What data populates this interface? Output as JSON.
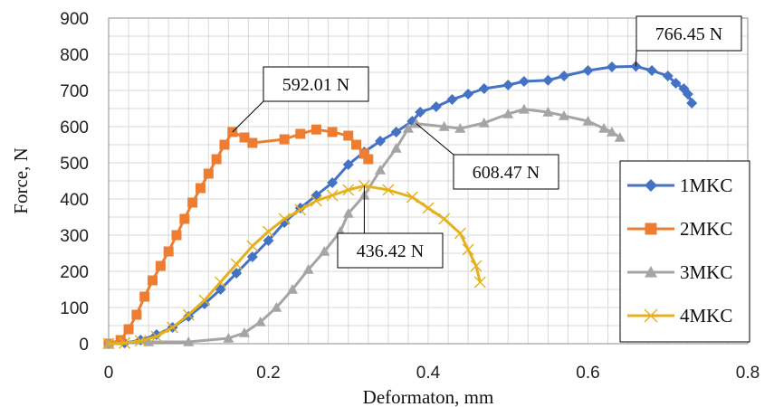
{
  "chart_data": {
    "type": "scatter",
    "xlabel": "Deformaton, mm",
    "ylabel": "Force, N",
    "xlim": [
      0,
      0.8
    ],
    "ylim": [
      0,
      900
    ],
    "xticks": [
      0,
      0.2,
      0.4,
      0.6,
      0.8
    ],
    "xtick_labels": [
      "0",
      "0.2",
      "0.4",
      "0.6",
      "0.8"
    ],
    "yticks": [
      0,
      100,
      200,
      300,
      400,
      500,
      600,
      700,
      800,
      900
    ],
    "ytick_labels": [
      "0",
      "100",
      "200",
      "300",
      "400",
      "500",
      "600",
      "700",
      "800",
      "900"
    ],
    "grid": true,
    "legend_position": "right",
    "series": [
      {
        "name": "1MKC",
        "color": "#4472C4",
        "marker": "diamond",
        "points": [
          [
            0,
            0
          ],
          [
            0.02,
            2
          ],
          [
            0.04,
            10
          ],
          [
            0.06,
            25
          ],
          [
            0.08,
            45
          ],
          [
            0.1,
            75
          ],
          [
            0.12,
            110
          ],
          [
            0.14,
            150
          ],
          [
            0.16,
            195
          ],
          [
            0.18,
            240
          ],
          [
            0.2,
            285
          ],
          [
            0.22,
            335
          ],
          [
            0.24,
            375
          ],
          [
            0.26,
            410
          ],
          [
            0.28,
            445
          ],
          [
            0.3,
            495
          ],
          [
            0.32,
            530
          ],
          [
            0.34,
            560
          ],
          [
            0.36,
            585
          ],
          [
            0.38,
            615
          ],
          [
            0.39,
            640
          ],
          [
            0.41,
            655
          ],
          [
            0.43,
            675
          ],
          [
            0.45,
            690
          ],
          [
            0.47,
            705
          ],
          [
            0.5,
            715
          ],
          [
            0.52,
            725
          ],
          [
            0.55,
            728
          ],
          [
            0.57,
            740
          ],
          [
            0.6,
            755
          ],
          [
            0.63,
            765
          ],
          [
            0.66,
            766.45
          ],
          [
            0.68,
            755
          ],
          [
            0.7,
            740
          ],
          [
            0.71,
            720
          ],
          [
            0.72,
            705
          ],
          [
            0.725,
            690
          ],
          [
            0.73,
            665
          ]
        ]
      },
      {
        "name": "2MKC",
        "color": "#ED7D31",
        "marker": "square",
        "points": [
          [
            0,
            0
          ],
          [
            0.015,
            10
          ],
          [
            0.025,
            40
          ],
          [
            0.035,
            80
          ],
          [
            0.045,
            130
          ],
          [
            0.055,
            175
          ],
          [
            0.065,
            215
          ],
          [
            0.075,
            255
          ],
          [
            0.085,
            300
          ],
          [
            0.095,
            345
          ],
          [
            0.105,
            390
          ],
          [
            0.115,
            430
          ],
          [
            0.125,
            470
          ],
          [
            0.135,
            510
          ],
          [
            0.145,
            550
          ],
          [
            0.155,
            585
          ],
          [
            0.17,
            570
          ],
          [
            0.18,
            555
          ],
          [
            0.22,
            565
          ],
          [
            0.24,
            580
          ],
          [
            0.26,
            592.01
          ],
          [
            0.28,
            585
          ],
          [
            0.3,
            575
          ],
          [
            0.31,
            550
          ],
          [
            0.32,
            525
          ],
          [
            0.325,
            510
          ]
        ]
      },
      {
        "name": "3MKC",
        "color": "#A5A5A5",
        "marker": "triangle",
        "points": [
          [
            0,
            0
          ],
          [
            0.05,
            5
          ],
          [
            0.1,
            5
          ],
          [
            0.15,
            15
          ],
          [
            0.17,
            30
          ],
          [
            0.19,
            60
          ],
          [
            0.21,
            100
          ],
          [
            0.23,
            150
          ],
          [
            0.25,
            205
          ],
          [
            0.27,
            255
          ],
          [
            0.29,
            310
          ],
          [
            0.3,
            360
          ],
          [
            0.32,
            410
          ],
          [
            0.34,
            480
          ],
          [
            0.36,
            540
          ],
          [
            0.375,
            595
          ],
          [
            0.385,
            608.47
          ],
          [
            0.42,
            600
          ],
          [
            0.44,
            595
          ],
          [
            0.47,
            610
          ],
          [
            0.5,
            635
          ],
          [
            0.52,
            648
          ],
          [
            0.55,
            640
          ],
          [
            0.57,
            630
          ],
          [
            0.6,
            615
          ],
          [
            0.62,
            595
          ],
          [
            0.63,
            585
          ],
          [
            0.64,
            570
          ]
        ]
      },
      {
        "name": "4MKC",
        "color": "#E5B01C",
        "marker": "x",
        "points": [
          [
            0,
            0
          ],
          [
            0.02,
            2
          ],
          [
            0.04,
            8
          ],
          [
            0.06,
            20
          ],
          [
            0.08,
            45
          ],
          [
            0.1,
            80
          ],
          [
            0.12,
            120
          ],
          [
            0.14,
            170
          ],
          [
            0.16,
            220
          ],
          [
            0.18,
            270
          ],
          [
            0.2,
            310
          ],
          [
            0.22,
            345
          ],
          [
            0.24,
            370
          ],
          [
            0.26,
            395
          ],
          [
            0.28,
            410
          ],
          [
            0.3,
            425
          ],
          [
            0.32,
            436.42
          ],
          [
            0.35,
            425
          ],
          [
            0.38,
            405
          ],
          [
            0.4,
            375
          ],
          [
            0.42,
            345
          ],
          [
            0.44,
            305
          ],
          [
            0.45,
            260
          ],
          [
            0.46,
            215
          ],
          [
            0.465,
            170
          ]
        ]
      }
    ],
    "annotations": [
      {
        "text": "766.45 N",
        "x": 0.66,
        "y": 766.45
      },
      {
        "text": "592.01 N",
        "x": 0.155,
        "y": 585
      },
      {
        "text": "608.47 N",
        "x": 0.385,
        "y": 608.47
      },
      {
        "text": "436.42 N",
        "x": 0.32,
        "y": 436.42
      }
    ]
  }
}
